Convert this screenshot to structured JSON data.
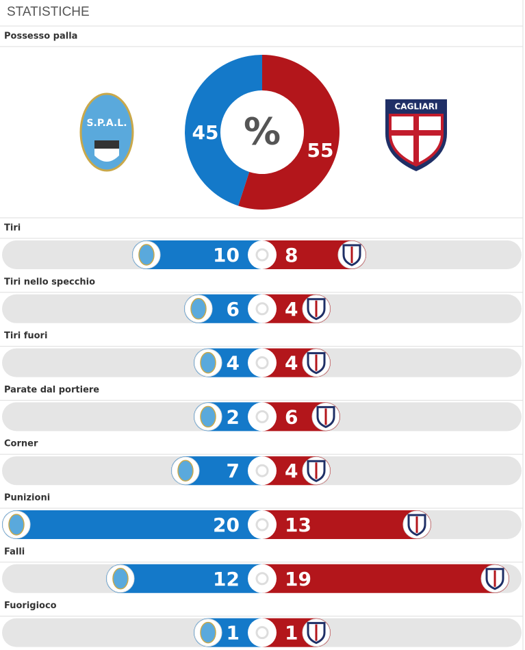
{
  "header": {
    "title": "STATISTICHE"
  },
  "teams": {
    "home": "S.P.A.L.",
    "away": "CAGLIARI"
  },
  "possession": {
    "label": "Possesso palla",
    "symbol": "%",
    "home": 45,
    "away": 55
  },
  "stats": [
    {
      "label": "Tiri",
      "home": 10,
      "away": 8
    },
    {
      "label": "Tiri nello specchio",
      "home": 6,
      "away": 4
    },
    {
      "label": "Tiri fuori",
      "home": 4,
      "away": 4
    },
    {
      "label": "Parate dal portiere",
      "home": 2,
      "away": 6
    },
    {
      "label": "Corner",
      "home": 7,
      "away": 4
    },
    {
      "label": "Punizioni",
      "home": 20,
      "away": 13
    },
    {
      "label": "Falli",
      "home": 12,
      "away": 19
    },
    {
      "label": "Fuorigioco",
      "home": 1,
      "away": 1
    }
  ]
}
